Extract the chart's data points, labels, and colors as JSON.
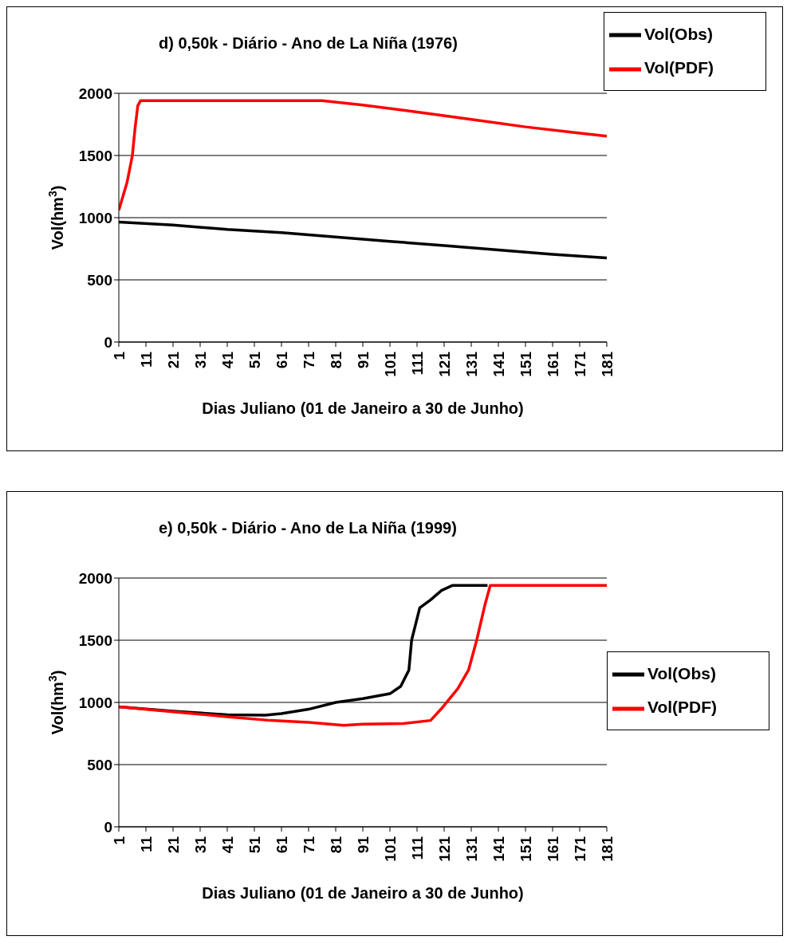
{
  "chart_data": [
    {
      "type": "line",
      "title": "d) 0,50k - Diário - Ano de La Niña (1976)",
      "xlabel": "Dias Juliano (01 de Janeiro a 30 de Junho)",
      "ylabel": "Vol(hm$^{3}$)",
      "xlim": [
        1,
        181
      ],
      "xticks": [
        1,
        11,
        21,
        31,
        41,
        51,
        61,
        71,
        81,
        91,
        101,
        111,
        121,
        131,
        141,
        151,
        161,
        171,
        181
      ],
      "ylim": [
        0,
        2000
      ],
      "yticks": [
        0,
        500,
        1000,
        1500,
        2000
      ],
      "grid": "y",
      "legend": "top right",
      "marker": "none",
      "line_style": "solid",
      "series": [
        {
          "name": "Vol(Obs)",
          "color": "#000000",
          "x": [
            1,
            21,
            41,
            61,
            81,
            101,
            121,
            141,
            161,
            181
          ],
          "values": [
            965,
            940,
            905,
            880,
            845,
            810,
            775,
            740,
            705,
            677
          ]
        },
        {
          "name": "Vol(PDF)",
          "color": "#ff0000",
          "x": [
            1,
            4,
            6,
            7,
            8,
            9,
            76,
            91,
            111,
            131,
            151,
            171,
            181
          ],
          "values": [
            1060,
            1280,
            1500,
            1720,
            1900,
            1940,
            1940,
            1905,
            1850,
            1790,
            1730,
            1680,
            1655
          ]
        }
      ]
    },
    {
      "type": "line",
      "title": "e) 0,50k - Diário - Ano de La Niña (1999)",
      "xlabel": "Dias Juliano (01 de Janeiro a 30 de Junho)",
      "ylabel": "Vol(hm$^{3}$)",
      "xlim": [
        1,
        181
      ],
      "xticks": [
        1,
        11,
        21,
        31,
        41,
        51,
        61,
        71,
        81,
        91,
        101,
        111,
        121,
        131,
        141,
        151,
        161,
        171,
        181
      ],
      "ylim": [
        0,
        2000
      ],
      "yticks": [
        0,
        500,
        1000,
        1500,
        2000
      ],
      "grid": "y",
      "legend": "right",
      "marker": "none",
      "line_style": "solid",
      "series": [
        {
          "name": "Vol(Obs)",
          "color": "#000000",
          "x": [
            1,
            21,
            41,
            55,
            61,
            71,
            81,
            91,
            101,
            105,
            108,
            109,
            112,
            116,
            120,
            124,
            137
          ],
          "values": [
            965,
            930,
            900,
            898,
            910,
            945,
            1000,
            1030,
            1070,
            1130,
            1260,
            1500,
            1760,
            1825,
            1900,
            1940,
            1940
          ]
        },
        {
          "name": "Vol(PDF)",
          "color": "#ff0000",
          "x": [
            1,
            21,
            41,
            57,
            71,
            84,
            91,
            106,
            116,
            120,
            126,
            130,
            133,
            136,
            138,
            181
          ],
          "values": [
            965,
            925,
            885,
            855,
            840,
            815,
            825,
            830,
            855,
            950,
            1110,
            1260,
            1500,
            1780,
            1940,
            1940
          ]
        }
      ]
    }
  ]
}
